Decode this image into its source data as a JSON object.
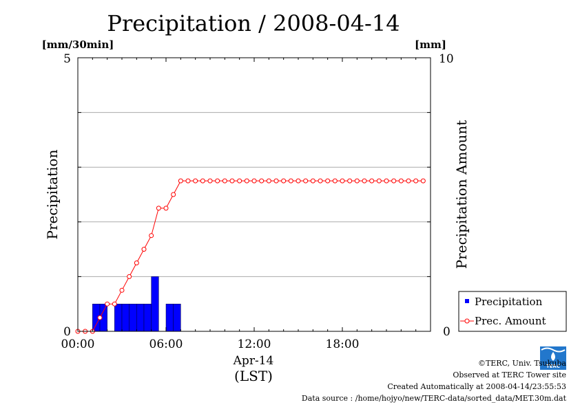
{
  "chart_data": {
    "type": "bar",
    "title": "Precipitation / 2008-04-14",
    "left_unit": "[mm/30min]",
    "right_unit": "[mm]",
    "ylabel": "Precipitation",
    "y2label": "Precipitation Amount",
    "ylim": [
      0,
      5
    ],
    "y2lim": [
      0,
      10
    ],
    "left_ticks": [
      "0",
      "5"
    ],
    "right_ticks": [
      "0",
      "10"
    ],
    "xlim": [
      0,
      24
    ],
    "x_ticks": [
      {
        "hour": 0,
        "label": "00:00"
      },
      {
        "hour": 6,
        "label": "06:00"
      },
      {
        "hour": 12,
        "label": "12:00"
      },
      {
        "hour": 18,
        "label": "18:00"
      }
    ],
    "date_label": "Apr-14",
    "timezone_label": "(LST)",
    "grid": true,
    "legend_position": "bottom-right",
    "series": [
      {
        "name": "Precipitation",
        "type": "bar",
        "axis": "left",
        "color": "#0000ff",
        "hours": [
          1,
          1.5,
          2.5,
          3,
          3.5,
          4,
          4.5,
          5,
          6,
          6.5
        ],
        "values": [
          0.5,
          0.5,
          0.5,
          0.5,
          0.5,
          0.5,
          0.5,
          1.0,
          0.5,
          0.5
        ]
      },
      {
        "name": "Prec. Amount",
        "type": "line",
        "axis": "right",
        "color": "#ff0000",
        "hours": [
          0,
          0.5,
          1,
          1.5,
          2,
          2.5,
          3,
          3.5,
          4,
          4.5,
          5,
          5.5,
          6,
          6.5,
          7,
          7.5,
          8,
          8.5,
          9,
          9.5,
          10,
          10.5,
          11,
          11.5,
          12,
          12.5,
          13,
          13.5,
          14,
          14.5,
          15,
          15.5,
          16,
          16.5,
          17,
          17.5,
          18,
          18.5,
          19,
          19.5,
          20,
          20.5,
          21,
          21.5,
          22,
          22.5,
          23,
          23.5
        ],
        "values": [
          0,
          0,
          0,
          0.5,
          1.0,
          1.0,
          1.5,
          2.0,
          2.5,
          3.0,
          3.5,
          4.5,
          4.5,
          5.0,
          5.5,
          5.5,
          5.5,
          5.5,
          5.5,
          5.5,
          5.5,
          5.5,
          5.5,
          5.5,
          5.5,
          5.5,
          5.5,
          5.5,
          5.5,
          5.5,
          5.5,
          5.5,
          5.5,
          5.5,
          5.5,
          5.5,
          5.5,
          5.5,
          5.5,
          5.5,
          5.5,
          5.5,
          5.5,
          5.5,
          5.5,
          5.5,
          5.5,
          5.5
        ]
      }
    ]
  },
  "credits": {
    "copyright": "©TERC, Univ. Tsukuba",
    "observed": "Observed at TERC Tower site",
    "created": "Created Automatically at 2008-04-14/23:55:53",
    "source": "Data source : /home/hojyo/new/TERC-data/sorted_data/MET.30m.dat",
    "logo_text": "TERC"
  }
}
